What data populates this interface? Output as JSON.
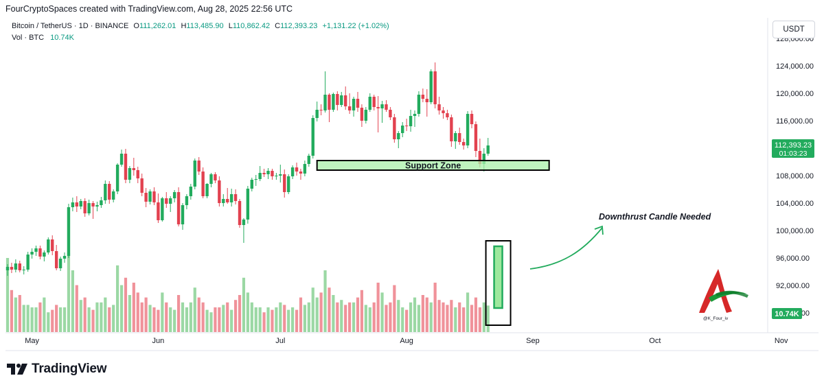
{
  "header": {
    "credit": "FourCryptoSpaces created with TradingView.com, Aug 28, 2025 22:56 UTC"
  },
  "legend": {
    "symbol": "Bitcoin / TetherUS · 1D · BINANCE",
    "o_label": "O",
    "o_value": "111,262.01",
    "h_label": "H",
    "h_value": "113,485.90",
    "l_label": "L",
    "l_value": "110,862.42",
    "c_label": "C",
    "c_value": "112,393.23",
    "change": "+1,131.22 (+1.02%)",
    "vol_label": "Vol · BTC",
    "vol_value": "10.74K"
  },
  "currency_button": "USDT",
  "colors": {
    "up": "#089981",
    "down": "#f23645",
    "up_candle": "#22ab5d",
    "down_candle": "#e2414f",
    "vol_up": "#9bd8a4",
    "vol_down": "#f0929a",
    "zone_fill": "#a9f0a9",
    "price_badge": "#22ab5d"
  },
  "chart_data": {
    "type": "candlestick",
    "symbol": "BTCUSDT",
    "timeframe": "1D",
    "y_ticks": [
      "128,000.00",
      "124,000.00",
      "120,000.00",
      "116,000.00",
      "112,000.00",
      "108,000.00",
      "104,000.00",
      "100,000.00",
      "96,000.00",
      "92,000.00",
      "88,000.00"
    ],
    "ylim": [
      86000,
      129200
    ],
    "x_ticks": [
      "May",
      "Jun",
      "Jul",
      "Aug",
      "Sep",
      "Oct",
      "Nov"
    ],
    "x_tick_dates": [
      "2025-05-01",
      "2025-06-01",
      "2025-07-01",
      "2025-08-01",
      "2025-09-01",
      "2025-10-01",
      "2025-11-01"
    ],
    "start_date": "2025-04-25",
    "ohlc": [
      [
        94200,
        95100,
        93400,
        94700
      ],
      [
        94700,
        95300,
        93800,
        94300
      ],
      [
        94300,
        95800,
        93900,
        95200
      ],
      [
        95200,
        95600,
        93900,
        94200
      ],
      [
        94200,
        94800,
        93600,
        94300
      ],
      [
        94300,
        96900,
        94000,
        96500
      ],
      [
        96500,
        97400,
        95900,
        96900
      ],
      [
        96900,
        97800,
        96300,
        97400
      ],
      [
        97400,
        97800,
        95800,
        96200
      ],
      [
        96200,
        97100,
        95500,
        96800
      ],
      [
        96800,
        99000,
        96500,
        98700
      ],
      [
        98700,
        99300,
        96400,
        97000
      ],
      [
        97000,
        97900,
        94200,
        94500
      ],
      [
        94500,
        96200,
        94100,
        95900
      ],
      [
        95900,
        96800,
        95300,
        96300
      ],
      [
        96300,
        103900,
        96000,
        103400
      ],
      [
        103400,
        104800,
        102800,
        104100
      ],
      [
        104100,
        105000,
        102700,
        103500
      ],
      [
        103500,
        104600,
        103100,
        104300
      ],
      [
        104300,
        104700,
        102000,
        102500
      ],
      [
        102500,
        104500,
        102200,
        104000
      ],
      [
        104000,
        104300,
        101700,
        103500
      ],
      [
        103500,
        104200,
        102800,
        103700
      ],
      [
        103700,
        104900,
        103300,
        104400
      ],
      [
        104400,
        107300,
        103900,
        106800
      ],
      [
        106800,
        107200,
        103900,
        104500
      ],
      [
        104500,
        106000,
        104100,
        105700
      ],
      [
        105700,
        109800,
        105300,
        109600
      ],
      [
        109600,
        111800,
        109300,
        111200
      ],
      [
        111200,
        111900,
        106900,
        107400
      ],
      [
        107400,
        109400,
        106900,
        109100
      ],
      [
        109100,
        110600,
        108000,
        108800
      ],
      [
        108800,
        109300,
        106900,
        107600
      ],
      [
        107600,
        108300,
        105000,
        105500
      ],
      [
        105500,
        106200,
        103400,
        104200
      ],
      [
        104200,
        106000,
        103800,
        105700
      ],
      [
        105700,
        106300,
        103700,
        104100
      ],
      [
        104100,
        105400,
        101100,
        101500
      ],
      [
        101500,
        104900,
        101300,
        104700
      ],
      [
        104700,
        105600,
        103300,
        103900
      ],
      [
        103900,
        105000,
        102700,
        104700
      ],
      [
        104700,
        105900,
        104100,
        105600
      ],
      [
        105600,
        106300,
        100600,
        100900
      ],
      [
        100900,
        104000,
        100100,
        103700
      ],
      [
        103700,
        105300,
        103100,
        105000
      ],
      [
        105000,
        106800,
        104500,
        106400
      ],
      [
        106400,
        110500,
        106000,
        110200
      ],
      [
        110200,
        110700,
        108100,
        108600
      ],
      [
        108600,
        109200,
        104700,
        105000
      ],
      [
        105000,
        106900,
        104700,
        106800
      ],
      [
        106800,
        108400,
        106300,
        108200
      ],
      [
        108200,
        108500,
        106900,
        107300
      ],
      [
        107300,
        107900,
        103500,
        104000
      ],
      [
        104000,
        105300,
        103500,
        104600
      ],
      [
        104600,
        106200,
        103900,
        104100
      ],
      [
        104100,
        106100,
        103500,
        105300
      ],
      [
        105300,
        106000,
        103800,
        104300
      ],
      [
        104300,
        104600,
        100400,
        100800
      ],
      [
        100800,
        101800,
        98200,
        101600
      ],
      [
        101600,
        106500,
        101000,
        106100
      ],
      [
        106100,
        107700,
        105700,
        107400
      ],
      [
        107400,
        108100,
        106500,
        107500
      ],
      [
        107500,
        109400,
        107200,
        108400
      ],
      [
        108400,
        109000,
        107800,
        108200
      ],
      [
        108200,
        109100,
        107500,
        108700
      ],
      [
        108700,
        109000,
        107400,
        107900
      ],
      [
        107900,
        108400,
        107400,
        108000
      ],
      [
        108000,
        109600,
        107000,
        108200
      ],
      [
        108200,
        108900,
        104800,
        105600
      ],
      [
        105600,
        108200,
        105300,
        107900
      ],
      [
        107900,
        109500,
        107500,
        109200
      ],
      [
        109200,
        109900,
        108000,
        108600
      ],
      [
        108600,
        109000,
        107400,
        108300
      ],
      [
        108300,
        110200,
        107900,
        109700
      ],
      [
        109700,
        111200,
        109300,
        110900
      ],
      [
        110900,
        116800,
        110500,
        116400
      ],
      [
        116400,
        118800,
        115900,
        117600
      ],
      [
        117600,
        118400,
        116800,
        117500
      ],
      [
        117500,
        123200,
        117200,
        119800
      ],
      [
        119800,
        120000,
        115800,
        117600
      ],
      [
        117600,
        120100,
        117300,
        119900
      ],
      [
        119900,
        120300,
        117500,
        118300
      ],
      [
        118300,
        120200,
        118000,
        119700
      ],
      [
        119700,
        121000,
        117600,
        118100
      ],
      [
        118100,
        120000,
        117000,
        117500
      ],
      [
        117500,
        119500,
        116600,
        119200
      ],
      [
        119200,
        120200,
        117300,
        117900
      ],
      [
        117900,
        118400,
        115100,
        116000
      ],
      [
        116000,
        118000,
        115600,
        117600
      ],
      [
        117600,
        120000,
        117300,
        119500
      ],
      [
        119500,
        119800,
        117500,
        118000
      ],
      [
        118000,
        119600,
        114300,
        117800
      ],
      [
        117800,
        118900,
        115700,
        118400
      ],
      [
        118400,
        119000,
        117300,
        117600
      ],
      [
        117600,
        118000,
        116100,
        116500
      ],
      [
        116500,
        117000,
        112800,
        113300
      ],
      [
        113300,
        114500,
        112000,
        114200
      ],
      [
        114200,
        115800,
        113600,
        115300
      ],
      [
        115300,
        116300,
        114500,
        115200
      ],
      [
        115200,
        117600,
        114400,
        116700
      ],
      [
        116700,
        117500,
        115100,
        117000
      ],
      [
        117000,
        120300,
        116600,
        119800
      ],
      [
        119800,
        120700,
        118700,
        119200
      ],
      [
        119200,
        120600,
        116600,
        118700
      ],
      [
        118700,
        123500,
        118400,
        123200
      ],
      [
        123200,
        124500,
        117800,
        118400
      ],
      [
        118400,
        119500,
        116900,
        117500
      ],
      [
        117500,
        118000,
        116300,
        117100
      ],
      [
        117100,
        117600,
        116100,
        116500
      ],
      [
        116500,
        116900,
        112200,
        113000
      ],
      [
        113000,
        114500,
        111900,
        114200
      ],
      [
        114200,
        115000,
        112500,
        112900
      ],
      [
        112900,
        113400,
        111800,
        112400
      ],
      [
        112400,
        117400,
        112000,
        117000
      ],
      [
        117000,
        117500,
        114900,
        115500
      ],
      [
        115500,
        115900,
        110700,
        111600
      ],
      [
        111600,
        113400,
        109200,
        109700
      ],
      [
        109700,
        112000,
        108600,
        111200
      ],
      [
        111200,
        113500,
        110900,
        112400
      ]
    ],
    "volume_btc": [
      30,
      17,
      14,
      15,
      11,
      11,
      10,
      10,
      12,
      14,
      8,
      9,
      11,
      10,
      10,
      32,
      25,
      19,
      13,
      14,
      10,
      9,
      12,
      12,
      14,
      10,
      11,
      27,
      19,
      22,
      15,
      20,
      16,
      12,
      14,
      11,
      10,
      9,
      16,
      12,
      10,
      9,
      15,
      12,
      10,
      12,
      18,
      14,
      12,
      9,
      8,
      10,
      10,
      11,
      12,
      9,
      13,
      15,
      22,
      16,
      12,
      10,
      10,
      8,
      10,
      9,
      10,
      12,
      11,
      9,
      10,
      9,
      14,
      11,
      12,
      18,
      14,
      16,
      25,
      18,
      15,
      12,
      13,
      11,
      12,
      12,
      14,
      17,
      11,
      10,
      12,
      20,
      16,
      11,
      12,
      19,
      13,
      10,
      9,
      12,
      14,
      11,
      15,
      14,
      12,
      20,
      13,
      12,
      11,
      13,
      10,
      12,
      10,
      16,
      11,
      14,
      10,
      12,
      10.74
    ],
    "support_zone": {
      "label": "Support Zone",
      "from": "2025-07-10",
      "to": "2025-09-05",
      "low": 108800,
      "high": 110200
    },
    "last_price": "112,393.23",
    "countdown": "01:03:23",
    "last_volume": "10.74K",
    "annotation": "Downthrust Candle Needed"
  },
  "footer": {
    "brand": "TradingView"
  },
  "watermark": {
    "handle": "@K_Four_iv"
  }
}
